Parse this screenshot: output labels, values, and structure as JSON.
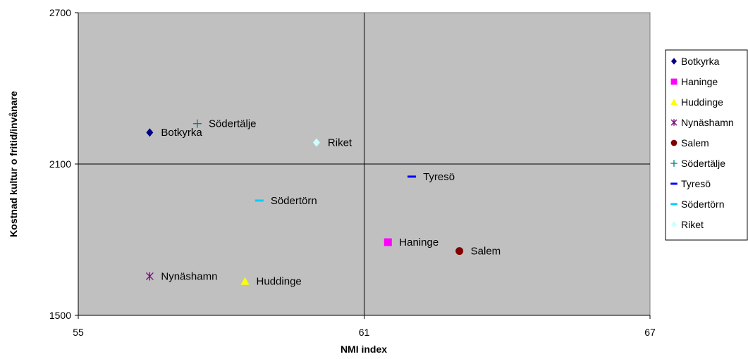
{
  "chart_data": {
    "type": "scatter",
    "xlabel": "NMI index",
    "ylabel": "Kostnad kultur o fritid/invånare",
    "xlim": [
      55,
      67
    ],
    "ylim": [
      1500,
      2700
    ],
    "xticks": [
      "55",
      "61",
      "67"
    ],
    "yticks": [
      "1500",
      "2100",
      "2700"
    ],
    "grid": true,
    "background": "#c0c0c0",
    "legend_position": "right",
    "series": [
      {
        "name": "Botkyrka",
        "label": "Botkyrka",
        "marker": "diamond-icon",
        "color": "#000080",
        "x": 56.5,
        "y": 2225
      },
      {
        "name": "Haninge",
        "label": "Haninge",
        "marker": "square-icon",
        "color": "#ff00ff",
        "x": 61.5,
        "y": 1790
      },
      {
        "name": "Huddinge",
        "label": "Huddinge",
        "marker": "triangle-icon",
        "color": "#ffff00",
        "x": 58.5,
        "y": 1635
      },
      {
        "name": "Nynäshamn",
        "label": "Nynäshamn",
        "marker": "asterisk-icon",
        "color": "#800080",
        "x": 56.5,
        "y": 1655
      },
      {
        "name": "Salem",
        "label": "Salem",
        "marker": "circle-icon",
        "color": "#800000",
        "x": 63.0,
        "y": 1755
      },
      {
        "name": "Södertälje",
        "label": "Södertälje",
        "marker": "plus-icon",
        "color": "#008080",
        "x": 57.5,
        "y": 2260
      },
      {
        "name": "Tyresö",
        "label": "Tyresö",
        "marker": "dash-icon",
        "color": "#0000ff",
        "x": 62.0,
        "y": 2050
      },
      {
        "name": "Södertörn",
        "label": "Södertörn",
        "marker": "dash-icon",
        "color": "#00ccff",
        "x": 58.8,
        "y": 1955
      },
      {
        "name": "Riket",
        "label": "Riket",
        "marker": "diamond-icon",
        "color": "#ccffff",
        "x": 60.0,
        "y": 2185
      }
    ]
  }
}
